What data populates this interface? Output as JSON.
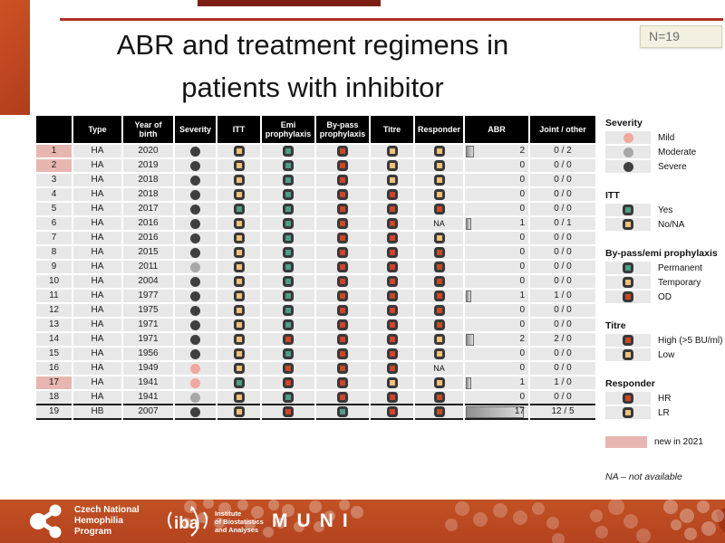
{
  "slide": {
    "title_line1": "ABR and treatment regimens in",
    "title_line2": "patients with inhibitor",
    "n_badge": "N=19"
  },
  "colors": {
    "teal": "#4f9d87",
    "yellow": "#eec17d",
    "red": "#c94829",
    "severity_mild": "#f1a89e",
    "severity_moderate": "#a7a7a7",
    "severity_severe": "#3f3f3f",
    "new_highlight": "#e8b6b1",
    "accent": "#bf4522"
  },
  "table": {
    "columns": [
      "",
      "Type",
      "Year of\nbirth",
      "Severity",
      "ITT",
      "Emi\nprophylaxis",
      "By-pass\nprophylaxis",
      "Titre",
      "Responder",
      "ABR",
      "Joint / other"
    ],
    "rows": [
      {
        "id": 1,
        "new2021": true,
        "type": "HA",
        "year": "2020",
        "severity": "severe",
        "itt": "no",
        "emi": "permanent",
        "bypass": "od",
        "titre": "low",
        "responder": "LR",
        "abr": 2,
        "joint_other": "0 / 2"
      },
      {
        "id": 2,
        "new2021": true,
        "type": "HA",
        "year": "2019",
        "severity": "severe",
        "itt": "no",
        "emi": "permanent",
        "bypass": "od",
        "titre": "low",
        "responder": "LR",
        "abr": 0,
        "joint_other": "0 / 0"
      },
      {
        "id": 3,
        "new2021": false,
        "type": "HA",
        "year": "2018",
        "severity": "severe",
        "itt": "no",
        "emi": "permanent",
        "bypass": "od",
        "titre": "low",
        "responder": "LR",
        "abr": 0,
        "joint_other": "0 / 0"
      },
      {
        "id": 4,
        "new2021": false,
        "type": "HA",
        "year": "2018",
        "severity": "severe",
        "itt": "no",
        "emi": "permanent",
        "bypass": "od",
        "titre": "high",
        "responder": "LR",
        "abr": 0,
        "joint_other": "0 / 0"
      },
      {
        "id": 5,
        "new2021": false,
        "type": "HA",
        "year": "2017",
        "severity": "severe",
        "itt": "yes",
        "emi": "permanent",
        "bypass": "od",
        "titre": "high",
        "responder": "HR",
        "abr": 0,
        "joint_other": "0 / 0"
      },
      {
        "id": 6,
        "new2021": false,
        "type": "HA",
        "year": "2016",
        "severity": "severe",
        "itt": "no",
        "emi": "permanent",
        "bypass": "od",
        "titre": "high",
        "responder": "NA",
        "abr": 1,
        "joint_other": "0 / 1"
      },
      {
        "id": 7,
        "new2021": false,
        "type": "HA",
        "year": "2016",
        "severity": "severe",
        "itt": "no",
        "emi": "permanent",
        "bypass": "od",
        "titre": "high",
        "responder": "LR",
        "abr": 0,
        "joint_other": "0 / 0"
      },
      {
        "id": 8,
        "new2021": false,
        "type": "HA",
        "year": "2015",
        "severity": "severe",
        "itt": "no",
        "emi": "permanent",
        "bypass": "od",
        "titre": "high",
        "responder": "HR",
        "abr": 0,
        "joint_other": "0 / 0"
      },
      {
        "id": 9,
        "new2021": false,
        "type": "HA",
        "year": "2011",
        "severity": "moderate",
        "itt": "no",
        "emi": "permanent",
        "bypass": "od",
        "titre": "high",
        "responder": "HR",
        "abr": 0,
        "joint_other": "0 / 0"
      },
      {
        "id": 10,
        "new2021": false,
        "type": "HA",
        "year": "2004",
        "severity": "severe",
        "itt": "no",
        "emi": "permanent",
        "bypass": "od",
        "titre": "high",
        "responder": "HR",
        "abr": 0,
        "joint_other": "0 / 0"
      },
      {
        "id": 11,
        "new2021": false,
        "type": "HA",
        "year": "1977",
        "severity": "severe",
        "itt": "no",
        "emi": "permanent",
        "bypass": "od",
        "titre": "high",
        "responder": "HR",
        "abr": 1,
        "joint_other": "1 / 0"
      },
      {
        "id": 12,
        "new2021": false,
        "type": "HA",
        "year": "1975",
        "severity": "severe",
        "itt": "no",
        "emi": "permanent",
        "bypass": "od",
        "titre": "high",
        "responder": "HR",
        "abr": 0,
        "joint_other": "0 / 0"
      },
      {
        "id": 13,
        "new2021": false,
        "type": "HA",
        "year": "1971",
        "severity": "severe",
        "itt": "no",
        "emi": "permanent",
        "bypass": "od",
        "titre": "high",
        "responder": "HR",
        "abr": 0,
        "joint_other": "0 / 0"
      },
      {
        "id": 14,
        "new2021": false,
        "type": "HA",
        "year": "1971",
        "severity": "severe",
        "itt": "no",
        "emi": "od",
        "bypass": "od",
        "titre": "high",
        "responder": "LR",
        "abr": 2,
        "joint_other": "2 / 0"
      },
      {
        "id": 15,
        "new2021": false,
        "type": "HA",
        "year": "1956",
        "severity": "severe",
        "itt": "no",
        "emi": "permanent",
        "bypass": "od",
        "titre": "high",
        "responder": "LR",
        "abr": 0,
        "joint_other": "0 / 0"
      },
      {
        "id": 16,
        "new2021": false,
        "type": "HA",
        "year": "1949",
        "severity": "mild",
        "itt": "no",
        "emi": "od",
        "bypass": "od",
        "titre": "high",
        "responder": "NA",
        "abr": 0,
        "joint_other": "0 / 0"
      },
      {
        "id": 17,
        "new2021": true,
        "type": "HA",
        "year": "1941",
        "severity": "mild",
        "itt": "yes",
        "emi": "od",
        "bypass": "od",
        "titre": "low",
        "responder": "LR",
        "abr": 1,
        "joint_other": "1 / 0"
      },
      {
        "id": 18,
        "new2021": false,
        "type": "HA",
        "year": "1941",
        "severity": "moderate",
        "itt": "no",
        "emi": "permanent",
        "bypass": "od",
        "titre": "high",
        "responder": "HR",
        "abr": 0,
        "joint_other": "0 / 0"
      },
      {
        "id": 19,
        "new2021": false,
        "type": "HB",
        "year": "2007",
        "severity": "severe",
        "itt": "no",
        "emi": "od",
        "bypass": "permanent",
        "titre": "high",
        "responder": "HR",
        "abr": 17,
        "joint_other": "12 / 5"
      }
    ],
    "abr_max": 17
  },
  "legend": {
    "sections": [
      {
        "title": "Severity",
        "items": [
          {
            "shape": "circle",
            "value": "mild",
            "label": "Mild"
          },
          {
            "shape": "circle",
            "value": "moderate",
            "label": "Moderate"
          },
          {
            "shape": "circle",
            "value": "severe",
            "label": "Severe"
          }
        ]
      },
      {
        "title": "ITT",
        "items": [
          {
            "shape": "square",
            "value": "yes",
            "label": "Yes"
          },
          {
            "shape": "square",
            "value": "no",
            "label": "No/NA"
          }
        ]
      },
      {
        "title": "By-pass/emi prophylaxis",
        "items": [
          {
            "shape": "square",
            "value": "permanent",
            "label": "Permanent"
          },
          {
            "shape": "square",
            "value": "temporary",
            "label": "Temporary"
          },
          {
            "shape": "square",
            "value": "od",
            "label": "OD"
          }
        ]
      },
      {
        "title": "Titre",
        "items": [
          {
            "shape": "square",
            "value": "high",
            "label": "High (>5 BU/ml)"
          },
          {
            "shape": "square",
            "value": "low",
            "label": "Low"
          }
        ]
      },
      {
        "title": "Responder",
        "items": [
          {
            "shape": "square",
            "value": "HR",
            "label": "HR"
          },
          {
            "shape": "square",
            "value": "LR",
            "label": "LR"
          }
        ]
      }
    ],
    "new_label": "new in 2021",
    "na_note": "NA – not available"
  },
  "footer": {
    "cnhp": {
      "line1": "Czech National",
      "line2": "Hemophilia",
      "line3": "Program"
    },
    "iba": {
      "mark": "iba",
      "line1": "Institute",
      "line2": "of Biostatistics",
      "line3": "and Analyses"
    },
    "muni": "MUNI"
  }
}
